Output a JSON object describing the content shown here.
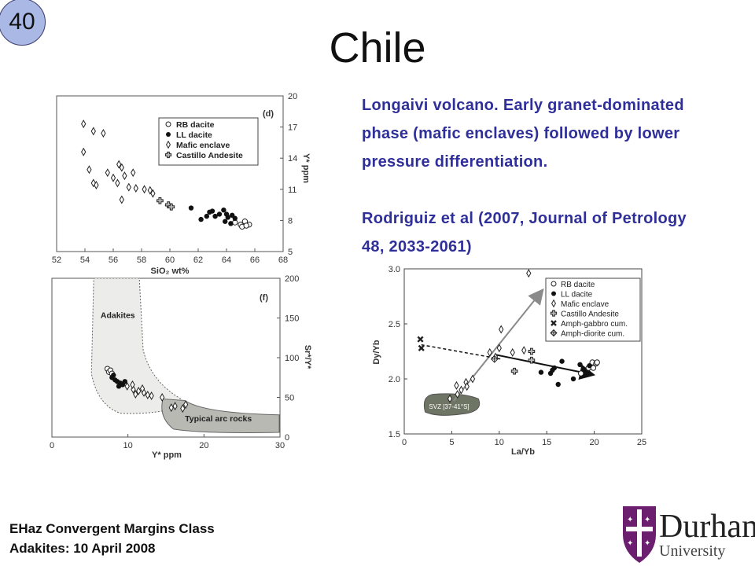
{
  "slide": {
    "number": "40",
    "title": "Chile",
    "description": [
      "Longaivi volcano. Early granet-dominated phase (mafic enclaves) followed by lower pressure differentiation.",
      "Rodriguiz et al (2007, Journal of Petrology 48, 2033-2061)"
    ],
    "footer_line1": "EHaz Convergent Margins Class",
    "footer_line2": "Adakites: 10 April 2008",
    "logo_word": "Durham",
    "logo_sub": "University",
    "colors": {
      "text_accent": "#2f2f9a",
      "badge": "#aab8e6",
      "logo_purple": "#6b1f6e"
    }
  },
  "chart_data": [
    {
      "type": "scatter",
      "panel_label": "(d)",
      "xlabel": "SiO₂ wt%",
      "ylabel": "Y* ppm",
      "xlim": [
        52,
        68
      ],
      "ylim": [
        5,
        20
      ],
      "xticks": [
        52,
        54,
        56,
        58,
        60,
        62,
        64,
        66,
        68
      ],
      "yticks": [
        5,
        8,
        11,
        14,
        17,
        20
      ],
      "legend_position": "top-right",
      "series": [
        {
          "name": "RB dacite",
          "marker": "open-circle",
          "x": [
            64.6,
            65.0,
            65.3,
            65.6,
            65.1,
            65.4
          ],
          "y": [
            7.8,
            7.6,
            7.9,
            7.6,
            7.4,
            7.5
          ]
        },
        {
          "name": "LL dacite",
          "marker": "filled-circle",
          "x": [
            61.5,
            62.2,
            62.8,
            63.2,
            63.5,
            63.8,
            64.1,
            64.4,
            64.6,
            63.0,
            63.9,
            64.3,
            64.0,
            62.6
          ],
          "y": [
            9.2,
            8.1,
            8.8,
            8.4,
            8.6,
            9.0,
            8.3,
            8.5,
            8.2,
            8.9,
            7.9,
            7.7,
            8.6,
            8.4
          ]
        },
        {
          "name": "Mafic enclave",
          "marker": "open-diamond",
          "x": [
            53.9,
            54.6,
            55.3,
            53.9,
            54.3,
            54.6,
            54.8,
            55.6,
            56.0,
            56.4,
            56.6,
            56.8,
            56.3,
            57.1,
            57.4,
            57.6,
            58.2,
            58.6,
            58.8,
            56.6
          ],
          "y": [
            17.3,
            16.6,
            16.4,
            14.6,
            12.9,
            11.6,
            11.4,
            12.6,
            12.1,
            13.4,
            13.1,
            12.3,
            11.6,
            11.2,
            12.6,
            11.1,
            11.0,
            10.9,
            10.6,
            10.0
          ]
        },
        {
          "name": "Castillo Andesite",
          "marker": "open-cross",
          "x": [
            59.3,
            59.9,
            60.1
          ],
          "y": [
            9.9,
            9.5,
            9.3
          ]
        }
      ]
    },
    {
      "type": "scatter",
      "panel_label": "(f)",
      "xlabel": "Y* ppm",
      "ylabel": "Sr*/Y*",
      "xlim": [
        0,
        30
      ],
      "ylim": [
        0,
        200
      ],
      "xticks": [
        0,
        10,
        20,
        30
      ],
      "yticks": [
        0,
        50,
        100,
        150,
        200
      ],
      "fields": [
        "Adakites",
        "Typical arc rocks"
      ],
      "points": {
        "RB dacite": {
          "x": [
            7.3,
            7.5,
            7.7,
            7.9
          ],
          "y": [
            86,
            82,
            84,
            80
          ]
        },
        "LL dacite": {
          "x": [
            7.9,
            8.3,
            8.6,
            9.0,
            9.3,
            8.1,
            8.8,
            9.6
          ],
          "y": [
            75,
            72,
            70,
            68,
            66,
            78,
            64,
            70
          ]
        },
        "Mafic enclave": {
          "x": [
            9.9,
            10.7,
            11.4,
            12.1,
            11.0,
            12.6,
            13.1,
            14.5,
            15.7,
            16.2,
            17.2,
            17.6,
            10.6,
            11.9
          ],
          "y": [
            64,
            60,
            58,
            56,
            54,
            53,
            52,
            50,
            37,
            39,
            36,
            41,
            66,
            61
          ]
        }
      }
    },
    {
      "type": "scatter",
      "xlabel": "La/Yb",
      "ylabel": "Dy/Yb",
      "xlim": [
        0,
        25
      ],
      "ylim": [
        1.5,
        3.0
      ],
      "xticks": [
        0,
        5,
        10,
        15,
        20,
        25
      ],
      "yticks": [
        1.5,
        2.0,
        2.5,
        3.0
      ],
      "legend_position": "top-right",
      "field_label": "SVZ [37-41°S]",
      "series": [
        {
          "name": "RB dacite",
          "marker": "open-circle",
          "x": [
            18.6,
            19.4,
            19.8,
            20.2,
            19.9,
            20.3
          ],
          "y": [
            2.05,
            2.1,
            2.15,
            2.14,
            2.1,
            2.15
          ]
        },
        {
          "name": "LL dacite",
          "marker": "filled-circle",
          "x": [
            14.4,
            15.4,
            15.6,
            16.2,
            16.6,
            17.8,
            18.5,
            15.8,
            19.5
          ],
          "y": [
            2.06,
            2.05,
            2.08,
            1.95,
            2.16,
            2.0,
            2.13,
            2.1,
            2.12
          ]
        },
        {
          "name": "Mafic enclave",
          "marker": "open-diamond",
          "x": [
            13.1,
            10.2,
            9.0,
            10.0,
            11.4,
            12.6,
            7.2,
            6.5,
            6.0,
            5.5,
            4.8,
            5.6,
            6.6,
            9.6
          ],
          "y": [
            2.96,
            2.45,
            2.24,
            2.28,
            2.24,
            2.26,
            2.0,
            1.97,
            1.9,
            1.94,
            1.82,
            1.86,
            1.93,
            2.2
          ]
        },
        {
          "name": "Castillo Andesite",
          "marker": "open-cross",
          "x": [
            13.4,
            13.4,
            11.6
          ],
          "y": [
            2.25,
            2.17,
            2.07
          ]
        },
        {
          "name": "Amph-gabbro cum.",
          "marker": "x",
          "x": [
            1.7,
            1.8
          ],
          "y": [
            2.36,
            2.28
          ]
        },
        {
          "name": "Amph-diorite cum.",
          "marker": "diamond-cross",
          "x": [
            9.5
          ],
          "y": [
            2.18
          ]
        }
      ]
    }
  ]
}
